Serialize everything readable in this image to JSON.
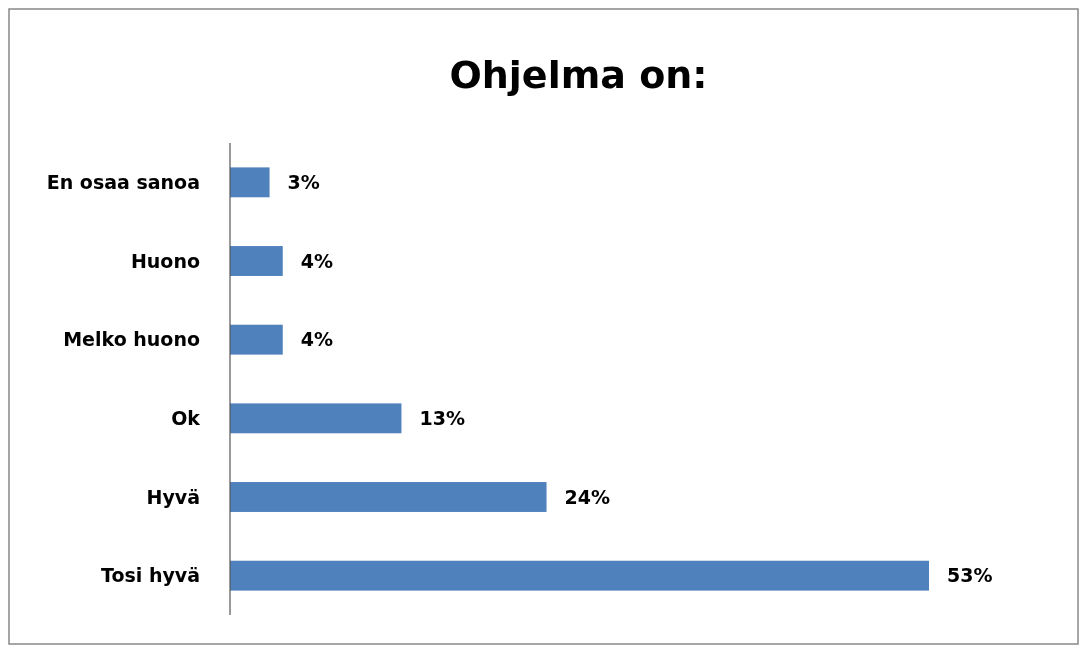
{
  "chart_data": {
    "type": "bar",
    "title": "Ohjelma on:",
    "orientation": "horizontal",
    "categories": [
      "En osaa sanoa",
      "Huono",
      "Melko huono",
      "Ok",
      "Hyvä",
      "Tosi hyvä"
    ],
    "values": [
      3,
      4,
      4,
      13,
      24,
      53
    ],
    "value_labels": [
      "3%",
      "4%",
      "4%",
      "13%",
      "24%",
      "53%"
    ],
    "color": "#4f81bd"
  }
}
